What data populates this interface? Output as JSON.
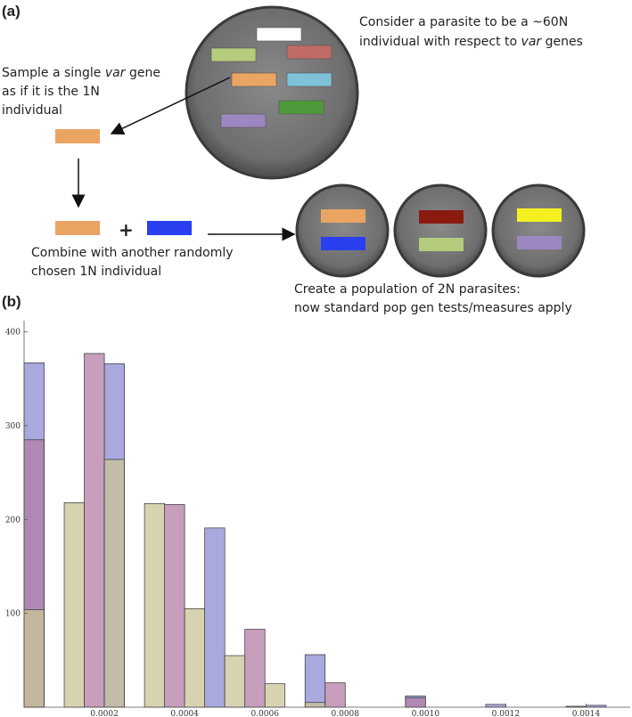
{
  "panel_a": {
    "label": "(a)",
    "consider": {
      "line1": "Consider a parasite to be a ~60N",
      "line2": [
        "individual with respect to ",
        "var",
        " genes"
      ]
    },
    "sample": {
      "line1": [
        "Sample a single ",
        "var",
        " gene"
      ],
      "line2": "as if it is the 1N",
      "line3": "individual"
    },
    "plus": "+",
    "combine": [
      "Combine with another randomly",
      "chosen 1N individual"
    ],
    "create": [
      "Create a population of 2N parasites:",
      "now standard pop gen tests/measures apply"
    ]
  },
  "panel_b": {
    "label": "(b)"
  },
  "chart_data": {
    "type": "histogram",
    "bins": [
      0,
      5e-05,
      0.0001,
      0.00015,
      0.0002,
      0.00025,
      0.0003,
      0.00035,
      0.0004,
      0.00045,
      0.0005,
      0.00055,
      0.0006,
      0.00065,
      0.0007,
      0.00075,
      0.0008,
      0.00085,
      0.0009,
      0.00095,
      0.001,
      0.00105,
      0.0011,
      0.00115,
      0.0012,
      0.00125,
      0.0013,
      0.00135,
      0.0014,
      0.00145,
      0.0015
    ],
    "series": [
      {
        "color": "#8c8cd2",
        "values": [
          367,
          0,
          0,
          0,
          366,
          0,
          0,
          0,
          0,
          191,
          0,
          0,
          0,
          0,
          56,
          0,
          0,
          0,
          0,
          12,
          0,
          0,
          0,
          3,
          0,
          0,
          0,
          0,
          2,
          0
        ]
      },
      {
        "color": "#b47ea6",
        "values": [
          285,
          0,
          0,
          377,
          0,
          0,
          0,
          216,
          0,
          0,
          0,
          83,
          0,
          0,
          0,
          26,
          0,
          0,
          0,
          10,
          0,
          0,
          0,
          0,
          0,
          0,
          0,
          1,
          0,
          0
        ]
      },
      {
        "color": "#c9c497",
        "values": [
          104,
          0,
          218,
          0,
          264,
          0,
          217,
          0,
          105,
          0,
          55,
          0,
          25,
          0,
          5,
          0,
          0,
          0,
          0,
          0,
          0,
          0,
          0,
          0,
          0,
          0,
          0,
          0,
          0,
          0
        ]
      }
    ],
    "xlim": [
      0,
      0.00151
    ],
    "ylim": [
      0,
      412
    ],
    "xticks": [
      0.0002,
      0.0004,
      0.0006,
      0.0008,
      {
        "value": 0.001,
        "label": "0.0010"
      },
      0.0012,
      0.0014
    ],
    "yticks": [
      100,
      200,
      300,
      400
    ]
  }
}
